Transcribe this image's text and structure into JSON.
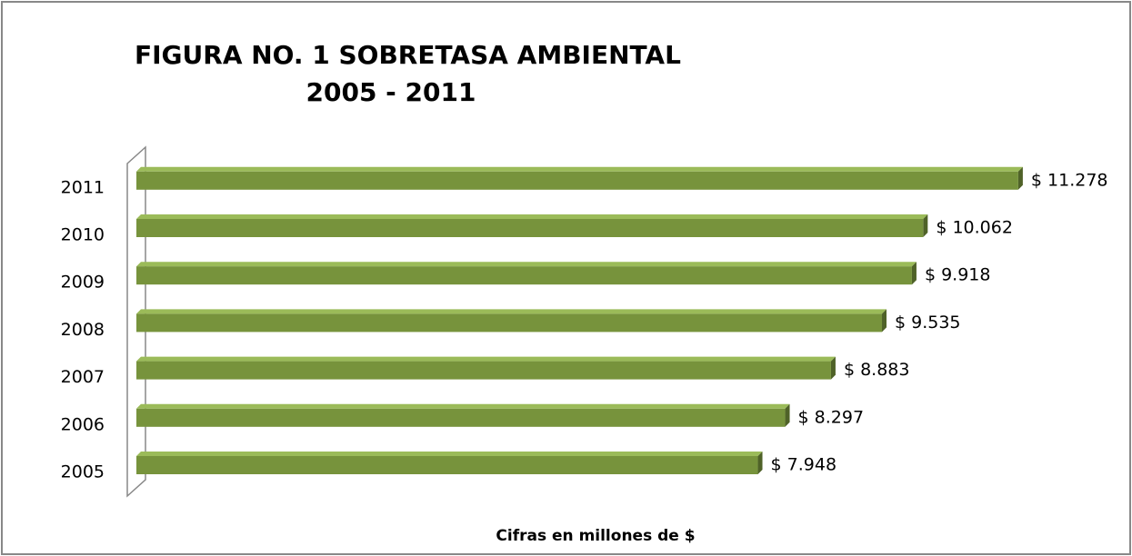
{
  "chart_data": {
    "type": "bar",
    "orientation": "horizontal",
    "title": "FIGURA NO. 1 SOBRETASA AMBIENTAL",
    "subtitle": "2005 - 2011",
    "x_label": "Cifras en millones de $",
    "categories": [
      "2005",
      "2006",
      "2007",
      "2008",
      "2009",
      "2010",
      "2011"
    ],
    "values": [
      7948,
      8297,
      8883,
      9535,
      9918,
      10062,
      11278
    ],
    "value_labels": [
      "$ 7.948",
      "$ 8.297",
      "$ 8.883",
      "$ 9.535",
      "$ 9.918",
      "$ 10.062",
      "$ 11.278"
    ],
    "color": "#77933c",
    "xlim": [
      0,
      12000
    ]
  }
}
